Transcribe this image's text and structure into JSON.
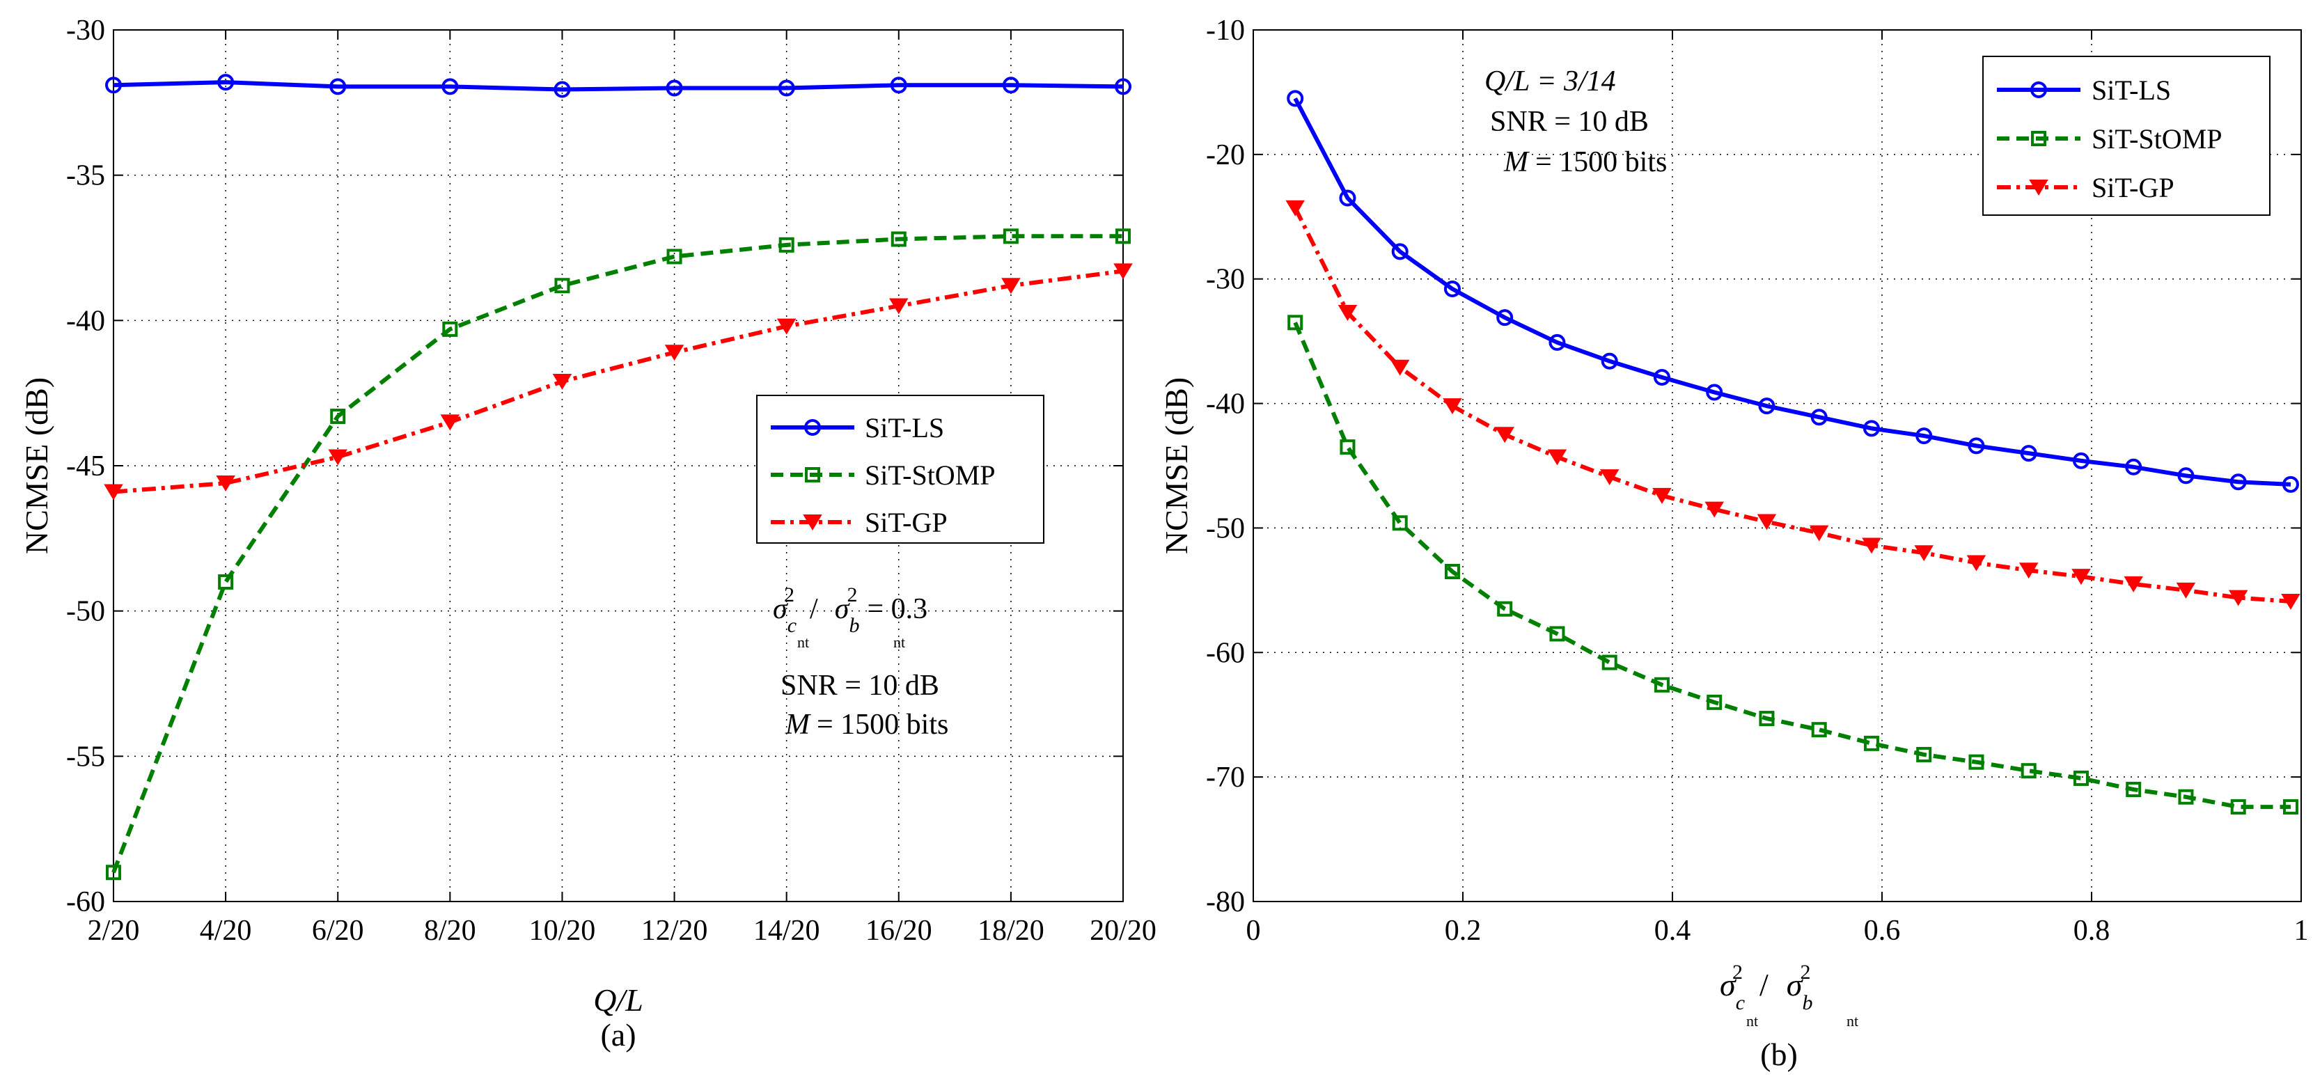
{
  "chart_data": [
    {
      "type": "line",
      "caption": "(a)",
      "xlabel": "Q/L",
      "ylabel": "NCMSE (dB)",
      "categories": [
        "2/20",
        "4/20",
        "6/20",
        "8/20",
        "10/20",
        "12/20",
        "14/20",
        "16/20",
        "18/20",
        "20/20"
      ],
      "ylim": [
        -60,
        -30
      ],
      "yticks": [
        -60,
        -55,
        -50,
        -45,
        -40,
        -35,
        -30
      ],
      "yticklabels": [
        "-60",
        "-55",
        "-50",
        "-45",
        "-40",
        "-35",
        "-30"
      ],
      "grid": true,
      "legend_position": "center-right",
      "series": [
        {
          "name": "SiT-LS",
          "color": "#0000ff",
          "style": "solid",
          "marker": "circle",
          "values": [
            -31.9,
            -31.8,
            -31.95,
            -31.95,
            -32.05,
            -32.0,
            -32.0,
            -31.9,
            -31.9,
            -31.95
          ]
        },
        {
          "name": "SiT-StOMP",
          "color": "#008000",
          "style": "dashed",
          "marker": "square",
          "values": [
            -59.0,
            -49.0,
            -43.3,
            -40.3,
            -38.8,
            -37.8,
            -37.4,
            -37.2,
            -37.1,
            -37.1
          ]
        },
        {
          "name": "SiT-GP",
          "color": "#ff0000",
          "style": "dashdot",
          "marker": "triangle-down",
          "values": [
            -45.9,
            -45.6,
            -44.7,
            -43.5,
            -42.1,
            -41.1,
            -40.2,
            -39.5,
            -38.8,
            -38.3
          ]
        }
      ],
      "annotation": {
        "sigma": "σ",
        "exp": "2",
        "sub_c": "c",
        "sub_b": "b",
        "sub_nt": "nt",
        "slash": "/",
        "ratio_value": "= 0.3",
        "snr": "SNR = 10 dB",
        "m_var": "M",
        "m_value": "= 1500 bits"
      }
    },
    {
      "type": "line",
      "caption": "(b)",
      "xlabel_sigma": "σ",
      "xlabel_exp": "2",
      "xlabel_sub_c": "c",
      "xlabel_sub_b": "b",
      "xlabel_sub_nt": "nt",
      "xlabel_slash": "/",
      "ylabel": "NCMSE (dB)",
      "xlim": [
        0,
        1
      ],
      "xticks": [
        0,
        0.2,
        0.4,
        0.6,
        0.8,
        1
      ],
      "xticklabels": [
        "0",
        "0.2",
        "0.4",
        "0.6",
        "0.8",
        "1"
      ],
      "ylim": [
        -80,
        -10
      ],
      "yticks": [
        -80,
        -70,
        -60,
        -50,
        -40,
        -30,
        -20,
        -10
      ],
      "yticklabels": [
        "-80",
        "-70",
        "-60",
        "-50",
        "-40",
        "-30",
        "-20",
        "-10"
      ],
      "grid": true,
      "legend_position": "top-right",
      "x": [
        0.04,
        0.09,
        0.14,
        0.19,
        0.24,
        0.29,
        0.34,
        0.39,
        0.44,
        0.49,
        0.54,
        0.59,
        0.64,
        0.69,
        0.74,
        0.79,
        0.84,
        0.89,
        0.94,
        0.99
      ],
      "series": [
        {
          "name": "SiT-LS",
          "color": "#0000ff",
          "style": "solid",
          "marker": "circle",
          "values": [
            -15.5,
            -23.5,
            -27.8,
            -30.8,
            -33.1,
            -35.1,
            -36.6,
            -37.9,
            -39.1,
            -40.2,
            -41.1,
            -42.0,
            -42.6,
            -43.4,
            -44.0,
            -44.6,
            -45.1,
            -45.8,
            -46.3,
            -46.5
          ]
        },
        {
          "name": "SiT-StOMP",
          "color": "#008000",
          "style": "dashed",
          "marker": "square",
          "values": [
            -33.5,
            -43.5,
            -49.6,
            -53.5,
            -56.5,
            -58.5,
            -60.8,
            -62.6,
            -64.0,
            -65.3,
            -66.2,
            -67.3,
            -68.2,
            -68.8,
            -69.5,
            -70.1,
            -71.0,
            -71.6,
            -72.4,
            -72.4
          ]
        },
        {
          "name": "SiT-GP",
          "color": "#ff0000",
          "style": "dashdot",
          "marker": "triangle-down",
          "values": [
            -24.3,
            -32.7,
            -37.1,
            -40.2,
            -42.5,
            -44.3,
            -45.9,
            -47.4,
            -48.5,
            -49.5,
            -50.4,
            -51.4,
            -52.0,
            -52.8,
            -53.4,
            -53.9,
            -54.5,
            -55.0,
            -55.6,
            -55.9
          ]
        }
      ],
      "annotation": {
        "ql": "Q/L = 3/14",
        "snr": "SNR = 10 dB",
        "m_var": "M",
        "m_value": "= 1500 bits"
      }
    }
  ]
}
